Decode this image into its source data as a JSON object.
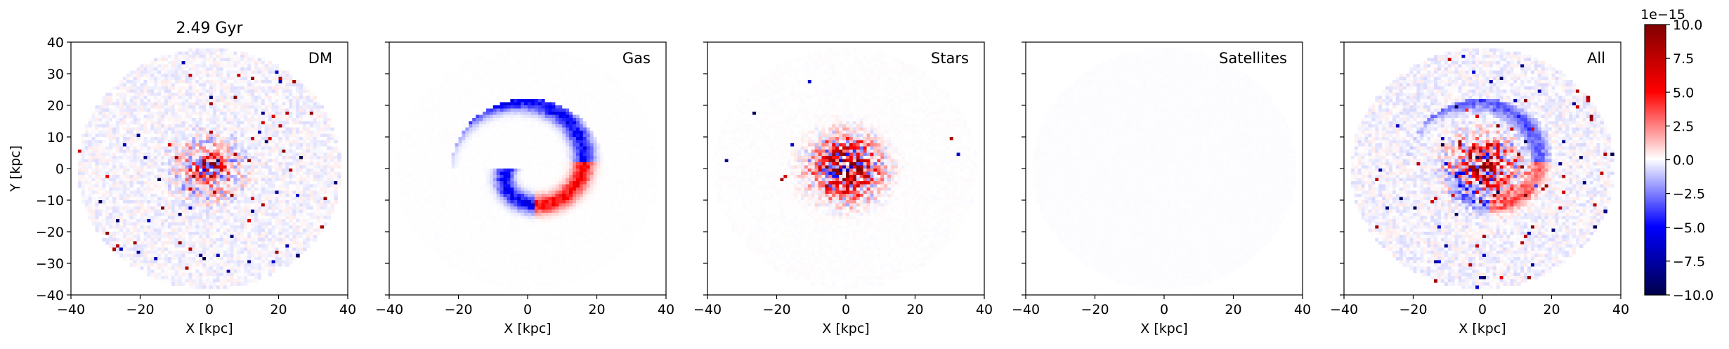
{
  "figure_title": "2.49 Gyr",
  "chart_data": [
    {
      "type": "heatmap",
      "label": "DM",
      "xlabel": "X [kpc]",
      "ylabel": "Y [kpc]",
      "xlim": [
        -40,
        40
      ],
      "ylim": [
        -40,
        40
      ],
      "xticks": [
        -40,
        -20,
        0,
        20,
        40
      ],
      "yticks": [
        -40,
        -30,
        -20,
        -10,
        0,
        10,
        20,
        30,
        40
      ],
      "seed": 11,
      "structure": {
        "disk_radius": 38,
        "bg_level": -0.12,
        "noise": 0.55,
        "core_amp": 9,
        "core_sigma": 3.5,
        "ring_amp": 2.2,
        "ring_radius": 8,
        "spiral_amp": 0.0,
        "speck_rate": 0.018
      }
    },
    {
      "type": "heatmap",
      "label": "Gas",
      "xlabel": "X [kpc]",
      "ylabel": "",
      "xlim": [
        -40,
        40
      ],
      "ylim": [
        -40,
        40
      ],
      "xticks": [
        -40,
        -20,
        0,
        20,
        40
      ],
      "yticks": [
        -40,
        -30,
        -20,
        -10,
        0,
        10,
        20,
        30,
        40
      ],
      "seed": 23,
      "structure": {
        "disk_radius": 38,
        "bg_level": 0.0,
        "noise": 0.05,
        "core_amp": 0,
        "core_sigma": 3,
        "ring_amp": 0,
        "ring_radius": 8,
        "spiral_amp": 6.5,
        "speck_rate": 0.0
      }
    },
    {
      "type": "heatmap",
      "label": "Stars",
      "xlabel": "X [kpc]",
      "ylabel": "",
      "xlim": [
        -40,
        40
      ],
      "ylim": [
        -40,
        40
      ],
      "xticks": [
        -40,
        -20,
        0,
        20,
        40
      ],
      "yticks": [
        -40,
        -30,
        -20,
        -10,
        0,
        10,
        20,
        30,
        40
      ],
      "seed": 37,
      "structure": {
        "disk_radius": 38,
        "bg_level": 0.0,
        "noise": 0.08,
        "core_amp": 12,
        "core_sigma": 5.5,
        "ring_amp": 1.5,
        "ring_radius": 10,
        "spiral_amp": 0.0,
        "speck_rate": 0.002
      }
    },
    {
      "type": "heatmap",
      "label": "Satellites",
      "xlabel": "X [kpc]",
      "ylabel": "",
      "xlim": [
        -40,
        40
      ],
      "ylim": [
        -40,
        40
      ],
      "xticks": [
        -40,
        -20,
        0,
        20,
        40
      ],
      "yticks": [
        -40,
        -30,
        -20,
        -10,
        0,
        10,
        20,
        30,
        40
      ],
      "seed": 41,
      "structure": {
        "disk_radius": 38,
        "bg_level": -0.05,
        "noise": 0.02,
        "core_amp": 0,
        "core_sigma": 3,
        "ring_amp": 0,
        "ring_radius": 8,
        "spiral_amp": 0.0,
        "speck_rate": 0.0
      }
    },
    {
      "type": "heatmap",
      "label": "All",
      "xlabel": "X [kpc]",
      "ylabel": "",
      "xlim": [
        -40,
        40
      ],
      "ylim": [
        -40,
        40
      ],
      "xticks": [
        -40,
        -20,
        0,
        20,
        40
      ],
      "yticks": [
        -40,
        -30,
        -20,
        -10,
        0,
        10,
        20,
        30,
        40
      ],
      "seed": 53,
      "structure": {
        "disk_radius": 38,
        "bg_level": -0.15,
        "noise": 0.6,
        "core_amp": 11,
        "core_sigma": 5,
        "ring_amp": 2.5,
        "ring_radius": 9,
        "spiral_amp": 4.0,
        "speck_rate": 0.02
      }
    }
  ],
  "colorbar": {
    "colormap": "seismic",
    "vmin": -10.0,
    "vmax": 10.0,
    "ticks": [
      "−10.0",
      "−7.5",
      "−5.0",
      "−2.5",
      "0.0",
      "2.5",
      "5.0",
      "7.5",
      "10.0"
    ],
    "tick_values": [
      -10,
      -7.5,
      -5,
      -2.5,
      0,
      2.5,
      5,
      7.5,
      10
    ],
    "scale_label": "1e−15"
  }
}
